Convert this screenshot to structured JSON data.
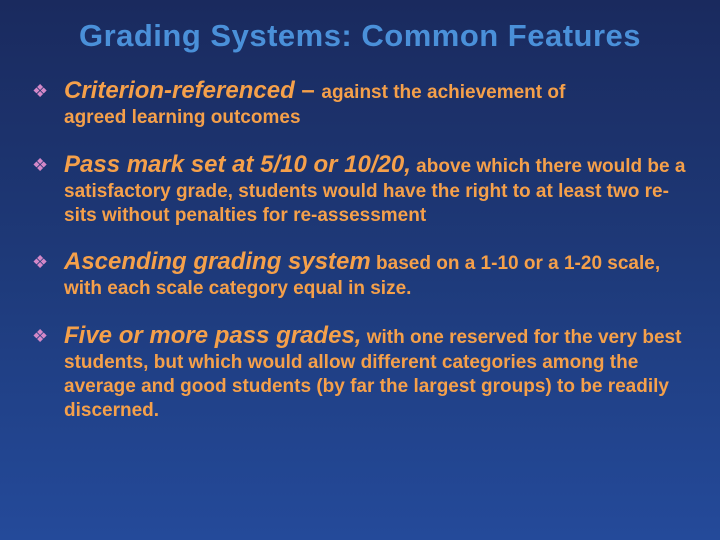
{
  "title": "Grading Systems: Common Features",
  "colors": {
    "background_top": "#1a2a5e",
    "background_bottom": "#244a9a",
    "title_color": "#4a90d9",
    "bullet_marker_color": "#d488c8",
    "text_color": "#f5a04a"
  },
  "typography": {
    "font_family": "Comic Sans MS",
    "title_fontsize": 31,
    "lead_fontsize": 24,
    "body_fontsize": 19
  },
  "bullets": [
    {
      "lead": "Criterion-referenced",
      "dash": "  – ",
      "body": "against the achievement of agreed learning outcomes",
      "body_first": "against the achievement of",
      "body_rest": "agreed learning outcomes"
    },
    {
      "lead": "Pass mark set at 5/10 or 10/20,",
      "body": " above which there would be a satisfactory grade, students would have the right to at least two re-sits without penalties for re-assessment"
    },
    {
      "lead": "Ascending grading system",
      "body": " based on a 1-10 or a 1-20 scale, with each scale category equal in size."
    },
    {
      "lead": "Five or more pass grades,",
      "body": " with one reserved for the very best students, but which would allow different categories among the average and good students (by far the largest groups) to be readily discerned."
    }
  ]
}
